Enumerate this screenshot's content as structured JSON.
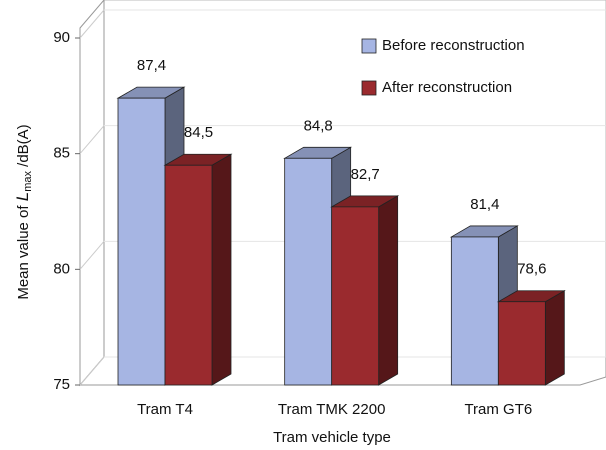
{
  "chart_data": {
    "type": "bar3d",
    "y_label_parts": [
      "Mean value of ",
      "L",
      "max",
      " /dB(A)"
    ],
    "x_label": "Tram vehicle type",
    "categories": [
      "Tram T4",
      "Tram TMK 2200",
      "Tram GT6"
    ],
    "series": [
      {
        "name": "Before reconstruction",
        "color": "#a6b5e3",
        "values": [
          87.4,
          84.8,
          81.4
        ],
        "value_labels": [
          "87,4",
          "84,8",
          "81,4"
        ]
      },
      {
        "name": "After reconstruction",
        "color": "#9a2a2e",
        "values": [
          84.5,
          82.7,
          78.6
        ],
        "value_labels": [
          "84,5",
          "82,7",
          "78,6"
        ]
      }
    ],
    "ylim": [
      75,
      90
    ],
    "yticks": [
      75,
      80,
      85,
      90
    ],
    "grid": true,
    "legend": "upper right"
  }
}
